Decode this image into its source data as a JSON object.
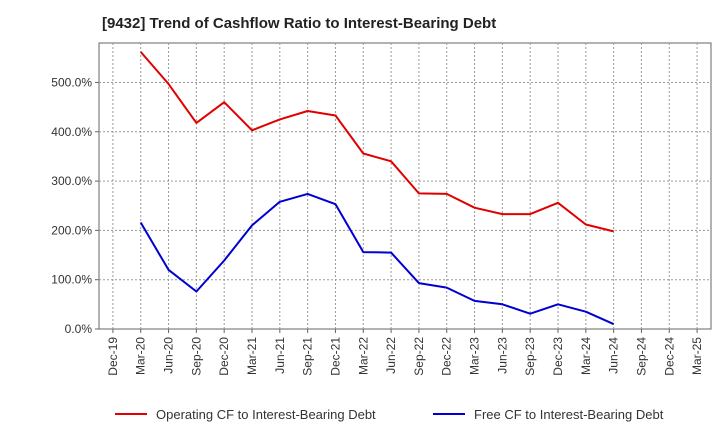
{
  "chart_data": {
    "type": "line",
    "title": "[9432]  Trend of Cashflow Ratio to Interest-Bearing Debt",
    "x_categories": [
      "Dec-19",
      "Mar-20",
      "Jun-20",
      "Sep-20",
      "Dec-20",
      "Mar-21",
      "Jun-21",
      "Sep-21",
      "Dec-21",
      "Mar-22",
      "Jun-22",
      "Sep-22",
      "Dec-22",
      "Mar-23",
      "Jun-23",
      "Sep-23",
      "Dec-23",
      "Mar-24",
      "Jun-24",
      "Sep-24",
      "Dec-24",
      "Mar-25"
    ],
    "y_ticks": [
      "0.0%",
      "100.0%",
      "200.0%",
      "300.0%",
      "400.0%",
      "500.0%"
    ],
    "ylim": [
      0,
      580
    ],
    "grid": true,
    "legend_position": "bottom",
    "series": [
      {
        "name": "Operating CF to Interest-Bearing Debt",
        "color": "#e00000",
        "values": [
          null,
          562,
          497,
          418,
          460,
          403,
          425,
          442,
          433,
          356,
          340,
          275,
          274,
          246,
          233,
          233,
          256,
          212,
          198,
          null,
          null,
          null
        ]
      },
      {
        "name": "Free CF to Interest-Bearing Debt",
        "color": "#0000d0",
        "values": [
          null,
          216,
          120,
          76,
          139,
          210,
          258,
          274,
          253,
          156,
          155,
          93,
          84,
          57,
          50,
          31,
          50,
          35,
          10,
          null,
          null,
          null
        ]
      }
    ]
  }
}
